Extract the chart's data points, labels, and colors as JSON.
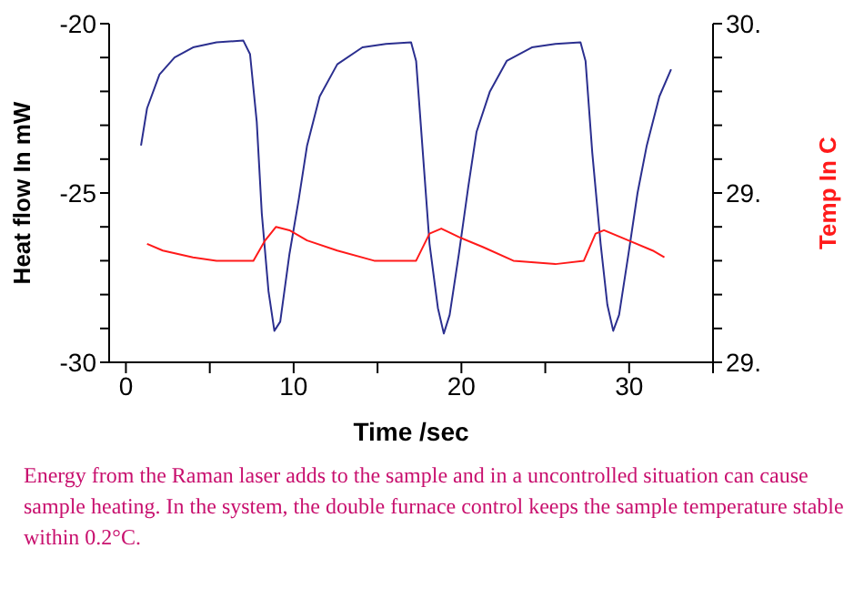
{
  "chart_data": {
    "type": "line",
    "xlabel": "Time /sec",
    "ylabel": "Heat flow In mW",
    "y2label": "Temp In C",
    "marker": "none",
    "xlim": [
      -1,
      35
    ],
    "xticks": [
      0,
      {
        "value": 5,
        "label": null
      },
      10,
      {
        "value": 15,
        "label": null
      },
      20,
      {
        "value": 25,
        "label": null
      },
      30,
      {
        "value": 35,
        "label": null
      }
    ],
    "ylim": [
      -30,
      -20
    ],
    "yticks": [
      -30,
      {
        "value": -29,
        "label": null
      },
      {
        "value": -28,
        "label": null
      },
      {
        "value": -27,
        "label": null
      },
      {
        "value": -26,
        "label": null
      },
      -25,
      {
        "value": -24,
        "label": null
      },
      {
        "value": -23,
        "label": null
      },
      {
        "value": -22,
        "label": null
      },
      {
        "value": -21,
        "label": null
      },
      -20
    ],
    "y2lim": [
      29,
      30
    ],
    "y2ticks": [
      {
        "value": 29,
        "label": "29."
      },
      {
        "value": 29.1,
        "label": null
      },
      {
        "value": 29.2,
        "label": null
      },
      {
        "value": 29.3,
        "label": null
      },
      {
        "value": 29.4,
        "label": null
      },
      {
        "value": 29.5,
        "label": "29."
      },
      {
        "value": 29.6,
        "label": null
      },
      {
        "value": 29.7,
        "label": null
      },
      {
        "value": 29.8,
        "label": null
      },
      {
        "value": 29.9,
        "label": null
      },
      {
        "value": 30,
        "label": "30."
      }
    ],
    "series": [
      {
        "color": "#2b2f8f",
        "x": [
          0.9,
          1.26,
          2.0,
          2.9,
          4.0,
          5.4,
          7.0,
          7.4,
          7.8,
          8.1,
          8.5,
          8.85,
          9.2,
          9.75,
          10.3,
          10.8,
          11.55,
          12.6,
          14.1,
          15.5,
          17.0,
          17.3,
          17.7,
          18.1,
          18.6,
          18.95,
          19.3,
          19.85,
          20.4,
          20.9,
          21.7,
          22.7,
          24.2,
          25.6,
          27.1,
          27.4,
          27.8,
          28.3,
          28.7,
          29.05,
          29.4,
          29.96,
          30.5,
          31.05,
          31.8,
          32.5
        ],
        "values": [
          -23.6,
          -22.5,
          -21.5,
          -21.0,
          -20.7,
          -20.55,
          -20.5,
          -20.9,
          -22.9,
          -25.6,
          -27.9,
          -29.07,
          -28.8,
          -26.8,
          -25.2,
          -23.6,
          -22.15,
          -21.2,
          -20.7,
          -20.6,
          -20.55,
          -21.1,
          -23.8,
          -26.5,
          -28.4,
          -29.15,
          -28.6,
          -26.8,
          -24.85,
          -23.2,
          -22.0,
          -21.1,
          -20.7,
          -20.6,
          -20.55,
          -21.1,
          -23.8,
          -26.5,
          -28.3,
          -29.07,
          -28.6,
          -26.8,
          -25.0,
          -23.6,
          -22.15,
          -21.35
        ]
      },
      {
        "color": "#ff1a1a",
        "axis": "y2",
        "x": [
          1.26,
          2.2,
          4.0,
          5.4,
          7.6,
          8.3,
          8.95,
          9.75,
          10.8,
          12.6,
          14.8,
          17.3,
          18.1,
          18.8,
          19.85,
          21.3,
          23.1,
          25.6,
          27.3,
          28.0,
          28.5,
          29.96,
          31.4,
          32.1
        ],
        "values": [
          29.35,
          29.33,
          29.31,
          29.3,
          29.3,
          29.36,
          29.4,
          29.39,
          29.36,
          29.33,
          29.3,
          29.3,
          29.38,
          29.395,
          29.37,
          29.34,
          29.3,
          29.29,
          29.3,
          29.38,
          29.39,
          29.36,
          29.33,
          29.31
        ]
      }
    ],
    "annotations": [
      "Energy from the Raman laser adds to the sample and in a uncontrolled situation can cause sample heating. In the system, the double furnace control keeps the sample temperature stable within 0.2°C."
    ]
  }
}
